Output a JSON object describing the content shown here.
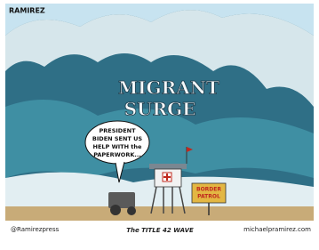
{
  "cartoon": {
    "signature": "RAMIREZ",
    "wave_text": [
      "MIGRANT",
      "SURGE"
    ],
    "speech_bubble": [
      "PRESIDENT",
      "BIDEN SENT US",
      "HELP WITH the",
      "PAPERWORK..."
    ],
    "sign": [
      "BORDER",
      "PATROL"
    ],
    "social_handle": "@Ramirezpress",
    "caption": "The TITLE 42 WAVE",
    "website": "michaelpramirez.com"
  }
}
